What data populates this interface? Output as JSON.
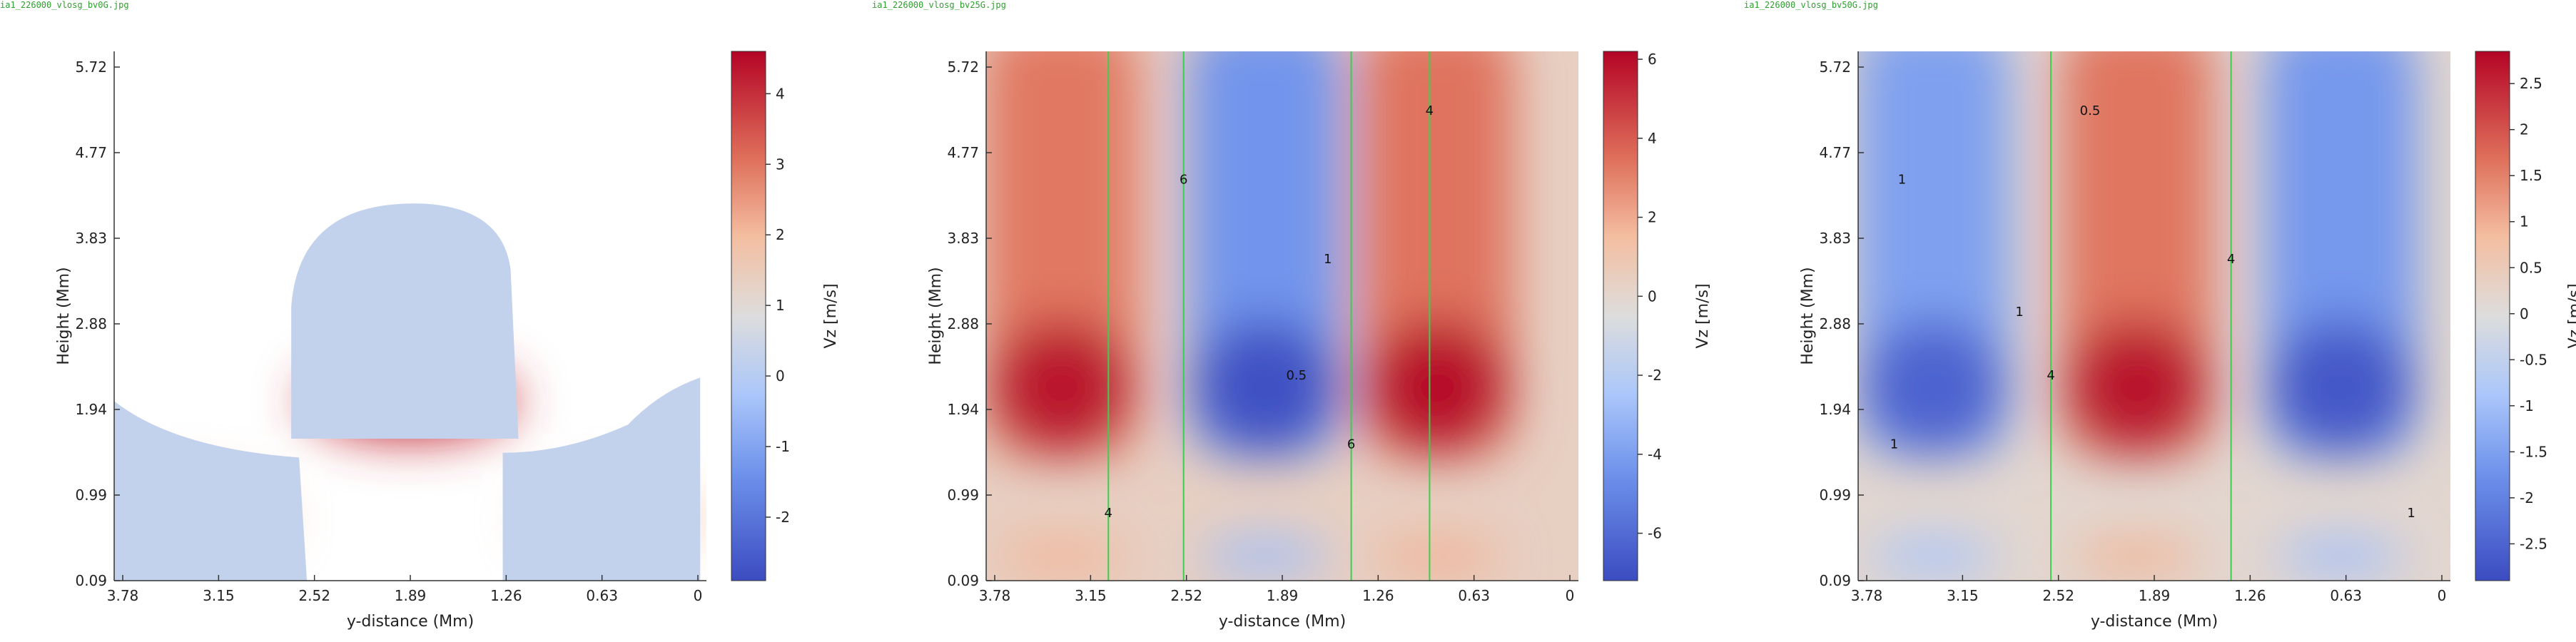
{
  "chart_data": [
    {
      "type": "heatmap",
      "file_label": "ia1_226000_vlosg_bv0G.jpg",
      "xlabel": "y-distance (Mm)",
      "ylabel": "Height (Mm)",
      "colorbar_label": "Vz [m/s]",
      "x_ticks": [
        "3.78",
        "3.15",
        "2.52",
        "1.89",
        "1.26",
        "0.63",
        "0"
      ],
      "y_ticks": [
        "5.72",
        "4.77",
        "3.83",
        "2.88",
        "1.94",
        "0.99",
        "0.09"
      ],
      "colorbar_ticks": [
        "4",
        "3",
        "2",
        "1",
        "0",
        "-1",
        "-2"
      ],
      "xlim": [
        3.78,
        0
      ],
      "ylim": [
        0.09,
        5.72
      ],
      "vlim": [
        -2.9,
        4.6
      ],
      "contours": [],
      "features": [
        {
          "kind": "blob",
          "y_center": 1.89,
          "height": 2.0,
          "peak": 4.4
        },
        {
          "kind": "blob",
          "y_center": 3.3,
          "height": 1.0,
          "peak": 1.9
        },
        {
          "kind": "blob",
          "y_center": 0.6,
          "height": 1.0,
          "peak": 1.9
        }
      ]
    },
    {
      "type": "heatmap",
      "file_label": "ia1_226000_vlosg_bv25G.jpg",
      "xlabel": "y-distance (Mm)",
      "ylabel": "Height (Mm)",
      "colorbar_label": "Vz [m/s]",
      "x_ticks": [
        "3.78",
        "3.15",
        "2.52",
        "1.89",
        "1.26",
        "0.63",
        "0"
      ],
      "y_ticks": [
        "5.72",
        "4.77",
        "3.83",
        "2.88",
        "1.94",
        "0.99",
        "0.09"
      ],
      "colorbar_ticks": [
        "6",
        "4",
        "2",
        "0",
        "-2",
        "-4",
        "-6"
      ],
      "xlim": [
        3.78,
        0
      ],
      "ylim": [
        0.09,
        5.72
      ],
      "vlim": [
        -7.2,
        6.2
      ],
      "contours": [
        {
          "label": "6",
          "y": 2.52
        },
        {
          "label": "6",
          "y": 1.45
        },
        {
          "label": "1",
          "y": 1.6
        },
        {
          "label": "0.5",
          "y": 1.8
        },
        {
          "label": "4",
          "y": 3.0
        },
        {
          "label": "4",
          "y": 0.95
        }
      ],
      "features": [
        {
          "kind": "band",
          "y_center": 3.3,
          "peak": 5.8
        },
        {
          "kind": "band",
          "y_center": 2.0,
          "peak": -7.0
        },
        {
          "kind": "band",
          "y_center": 0.9,
          "peak": 6.0
        }
      ]
    },
    {
      "type": "heatmap",
      "file_label": "ia1_226000_vlosg_bv50G.jpg",
      "xlabel": "y-distance (Mm)",
      "ylabel": "Height (Mm)",
      "colorbar_label": "Vz [m/s]",
      "x_ticks": [
        "3.78",
        "3.15",
        "2.52",
        "1.89",
        "1.26",
        "0.63",
        "0"
      ],
      "y_ticks": [
        "5.72",
        "4.77",
        "3.83",
        "2.88",
        "1.94",
        "0.99",
        "0.09"
      ],
      "colorbar_ticks": [
        "2.5",
        "2",
        "1.5",
        "1",
        "0.5",
        "0",
        "-0.5",
        "-1",
        "-1.5",
        "-2",
        "-2.5"
      ],
      "xlim": [
        3.78,
        0
      ],
      "ylim": [
        0.09,
        5.72
      ],
      "vlim": [
        -2.9,
        2.85
      ],
      "contours": [
        {
          "label": "1",
          "y": 3.5
        },
        {
          "label": "1",
          "y": 3.55
        },
        {
          "label": "4",
          "y": 1.4
        },
        {
          "label": "4",
          "y": 2.55
        },
        {
          "label": "1",
          "y": 0.25
        },
        {
          "label": "0.5",
          "y": 2.3
        },
        {
          "label": "1",
          "y": 2.75
        }
      ],
      "features": [
        {
          "kind": "band",
          "y_center": 3.3,
          "peak": -2.5
        },
        {
          "kind": "band",
          "y_center": 2.0,
          "peak": 2.7
        },
        {
          "kind": "band",
          "y_center": 0.7,
          "peak": -2.7
        }
      ]
    }
  ]
}
